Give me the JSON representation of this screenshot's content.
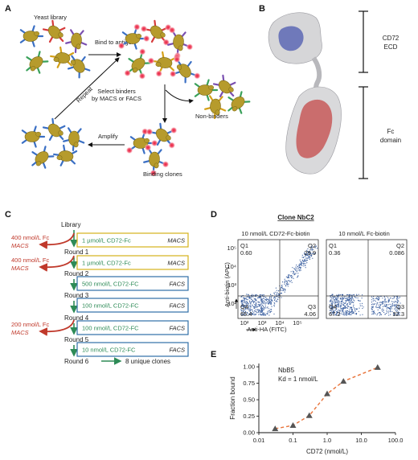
{
  "panel_a": {
    "label": "A",
    "yeast_library": "Yeast library",
    "bind_to_antigen": "Bind to antigen",
    "repeat": "Repeat",
    "select_binders_1": "Select binders",
    "select_binders_2": "by MACS or FACS",
    "non_binders": "Non-binders",
    "amplify": "Amplify",
    "binding_clones": "Binding clones"
  },
  "panel_b": {
    "label": "B",
    "ecd_line1": "CD72",
    "ecd_line2": "ECD",
    "fc_line1": "Fc",
    "fc_line2": "domain"
  },
  "panel_c": {
    "label": "C",
    "library": "Library",
    "rounds": [
      "Round 1",
      "Round 2",
      "Round 3",
      "Round 4",
      "Round 5",
      "Round 6"
    ],
    "outcome": "8 unique clones",
    "boxes": [
      {
        "text": "1 µmol/L CD72-Fc",
        "method": "MACS"
      },
      {
        "text": "1 µmol/L CD72-Fc",
        "method": "MACS"
      },
      {
        "text": "500 nmol/L CD72-FC",
        "method": "FACS"
      },
      {
        "text": "100 nmol/L CD72-FC",
        "method": "FACS"
      },
      {
        "text": "100 nmol/L CD72-FC",
        "method": "FACS"
      },
      {
        "text": "10 nmol/L CD72-FC",
        "method": "FACS"
      }
    ],
    "negatives": [
      {
        "text": "400 nmol/L Fc",
        "method": "MACS"
      },
      {
        "text": "400 nmol/L Fc",
        "method": "MACS"
      },
      {
        "text": "200 nmol/L Fc",
        "method": "MACS"
      }
    ],
    "colors": {
      "macs": "#d4b21a",
      "facs": "#2f6fa7",
      "arrow": "#2e8b57",
      "negative": "#c0392b"
    }
  },
  "panel_d": {
    "label": "D",
    "title": "Clone NbC2",
    "plot1_title": "10 nmol/L CD72-Fc-biotin",
    "plot2_title": "10 nmol/L Fc-biotin",
    "ylabel": "Anti-biotin (APC)",
    "xlabel": "Anti-HA (FITC)",
    "ticks": [
      "10²",
      "10³",
      "10⁴",
      "10⁵"
    ],
    "plot1_quadrants": {
      "q1": "Q1",
      "q1v": "0.60",
      "q2": "Q2",
      "q2v": "29.9",
      "q3": "Q3",
      "q3v": "4.06",
      "q4": "Q4",
      "q4v": "65.4"
    },
    "plot2_quadrants": {
      "q1": "Q1",
      "q1v": "0.36",
      "q2": "Q2",
      "q2v": "0.086",
      "q3": "Q3",
      "q3v": "32.3",
      "q4": "Q4",
      "q4v": "67.2"
    }
  },
  "panel_e": {
    "label": "E",
    "name": "NbB5",
    "kd": "Kd = 1 nmol/L"
  },
  "chart_data": {
    "type": "scatter",
    "x": [
      0.03,
      0.1,
      0.3,
      1,
      3,
      30
    ],
    "y": [
      0.06,
      0.11,
      0.26,
      0.59,
      0.78,
      0.99
    ],
    "xlabel": "CD72 (nmol/L)",
    "ylabel": "Fraction bound",
    "xscale": "log",
    "xlim": [
      0.01,
      100
    ],
    "ylim": [
      0,
      1.05
    ],
    "xticks": [
      "0.01",
      "0.1",
      "1.0",
      "10.0",
      "100.0"
    ],
    "yticks": [
      "0.00",
      "0.25",
      "0.50",
      "0.75",
      "1.00"
    ],
    "marker": "triangle",
    "fit_line": "dashed",
    "colors": {
      "fit": "#e8743b",
      "marker": "#555555"
    }
  }
}
